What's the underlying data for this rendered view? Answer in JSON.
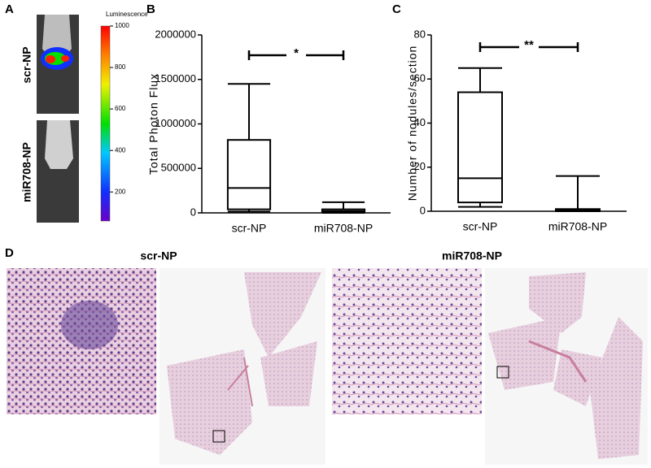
{
  "panel_letters": [
    "A",
    "B",
    "C",
    "D"
  ],
  "panel_a": {
    "labels": [
      "scr-NP",
      "miR708-NP"
    ],
    "colorbar": {
      "title": "Luminescence",
      "lim": [
        60,
        1000
      ],
      "ticks": [
        200,
        400,
        600,
        800,
        1000
      ]
    }
  },
  "chart_data": [
    {
      "type": "box",
      "ylabel": "Total Photon Flux",
      "categories": [
        "scr-NP",
        "miR708-NP"
      ],
      "boxes": [
        {
          "min": 15000,
          "q1": 40000,
          "median": 280000,
          "q3": 820000,
          "max": 1450000
        },
        {
          "min": 0,
          "q1": 5000,
          "median": 20000,
          "q3": 40000,
          "max": 120000
        }
      ],
      "ylim": [
        0,
        2000000
      ],
      "yticks": [
        0,
        500000,
        1000000,
        1500000,
        2000000
      ],
      "annotation": "*"
    },
    {
      "type": "box",
      "ylabel": "Number of nodules/section",
      "categories": [
        "scr-NP",
        "miR708-NP"
      ],
      "boxes": [
        {
          "min": 2,
          "q1": 4,
          "median": 15,
          "q3": 54,
          "max": 65
        },
        {
          "min": 0,
          "q1": 0,
          "median": 0.5,
          "q3": 1,
          "max": 16
        }
      ],
      "ylim": [
        0,
        80
      ],
      "yticks": [
        0,
        20,
        40,
        60,
        80
      ],
      "annotation": "**"
    }
  ],
  "panel_d": {
    "titles": [
      "scr-NP",
      "miR708-NP"
    ]
  }
}
